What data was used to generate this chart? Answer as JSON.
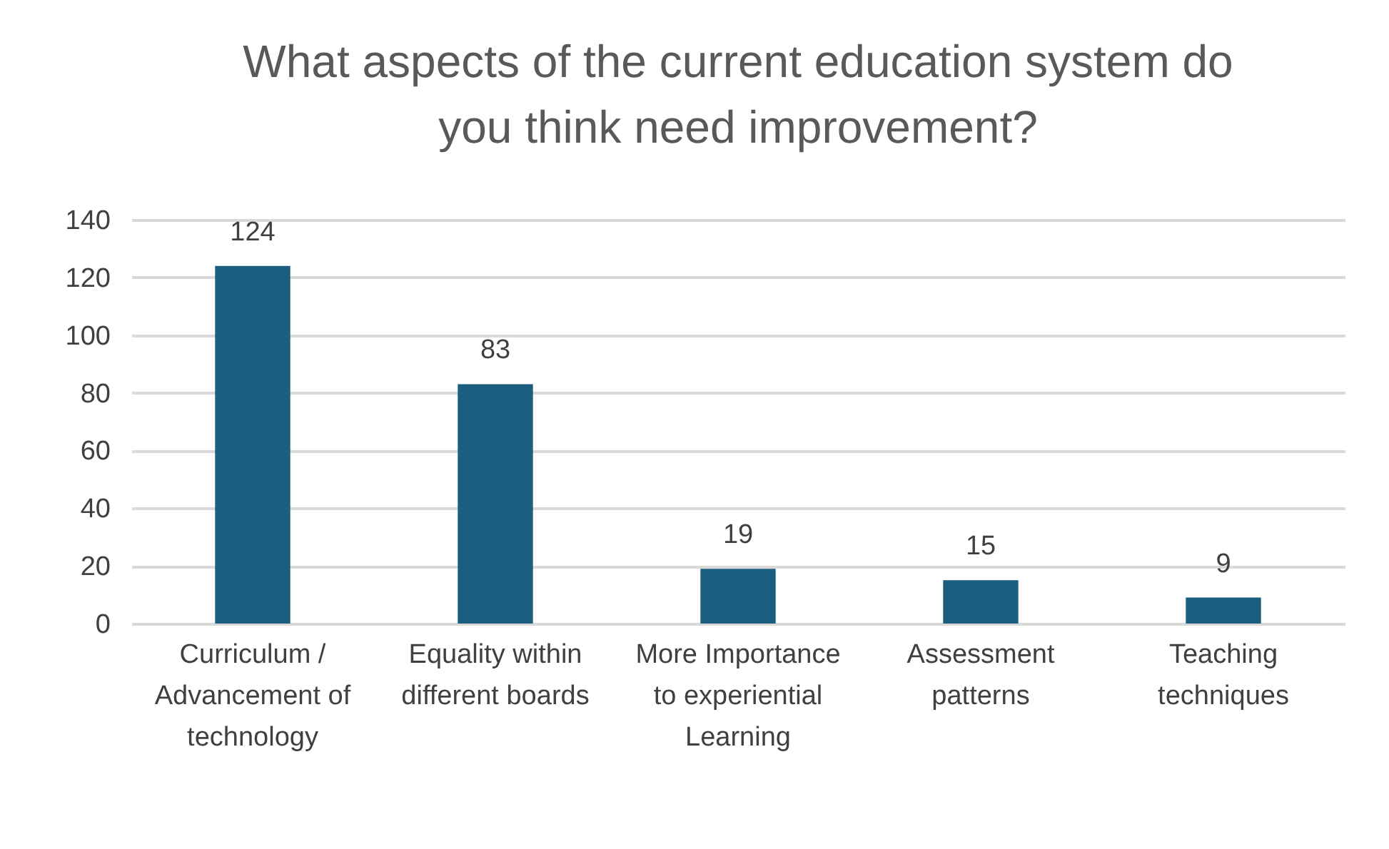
{
  "chart_data": {
    "type": "bar",
    "title": "What aspects of the current education system do you think need improvement?",
    "categories": [
      "Curriculum / Advancement of technology",
      "Equality within different boards",
      "More Importance to experiential Learning",
      "Assessment patterns",
      "Teaching techniques"
    ],
    "values": [
      124,
      83,
      19,
      15,
      9
    ],
    "color": "#1b5e80",
    "ylim": [
      0,
      140
    ],
    "yticks": [
      0,
      20,
      40,
      60,
      80,
      100,
      120,
      140
    ],
    "grid": "y",
    "data_labels": true
  }
}
